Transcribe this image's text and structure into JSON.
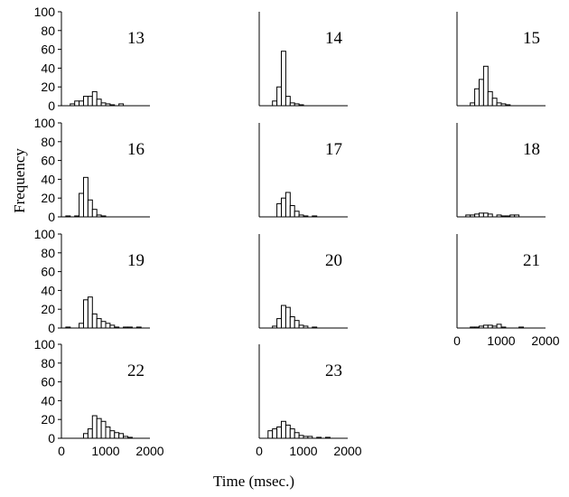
{
  "chart_data": {
    "type": "bar",
    "layout": "small-multiples histogram grid",
    "xlabel": "Time (msec.)",
    "ylabel": "Frequency",
    "xlim": [
      0,
      2000
    ],
    "ylim": [
      0,
      100
    ],
    "x_ticks": [
      "0",
      "1000",
      "2000"
    ],
    "y_ticks": [
      "0",
      "20",
      "40",
      "60",
      "80",
      "100"
    ],
    "bin_width_ms": 100,
    "grid": false,
    "panels": [
      {
        "label": "13",
        "bins": [
          {
            "x": 200,
            "y": 2
          },
          {
            "x": 300,
            "y": 5
          },
          {
            "x": 400,
            "y": 5
          },
          {
            "x": 500,
            "y": 10
          },
          {
            "x": 600,
            "y": 10
          },
          {
            "x": 700,
            "y": 15
          },
          {
            "x": 800,
            "y": 7
          },
          {
            "x": 900,
            "y": 3
          },
          {
            "x": 1000,
            "y": 2
          },
          {
            "x": 1100,
            "y": 1
          },
          {
            "x": 1300,
            "y": 2
          }
        ]
      },
      {
        "label": "14",
        "bins": [
          {
            "x": 300,
            "y": 5
          },
          {
            "x": 400,
            "y": 20
          },
          {
            "x": 500,
            "y": 58
          },
          {
            "x": 600,
            "y": 10
          },
          {
            "x": 700,
            "y": 3
          },
          {
            "x": 800,
            "y": 2
          },
          {
            "x": 900,
            "y": 1
          }
        ]
      },
      {
        "label": "15",
        "bins": [
          {
            "x": 300,
            "y": 3
          },
          {
            "x": 400,
            "y": 18
          },
          {
            "x": 500,
            "y": 28
          },
          {
            "x": 600,
            "y": 42
          },
          {
            "x": 700,
            "y": 15
          },
          {
            "x": 800,
            "y": 8
          },
          {
            "x": 900,
            "y": 3
          },
          {
            "x": 1000,
            "y": 2
          },
          {
            "x": 1100,
            "y": 1
          }
        ]
      },
      {
        "label": "16",
        "bins": [
          {
            "x": 100,
            "y": 1
          },
          {
            "x": 300,
            "y": 1
          },
          {
            "x": 400,
            "y": 25
          },
          {
            "x": 500,
            "y": 42
          },
          {
            "x": 600,
            "y": 18
          },
          {
            "x": 700,
            "y": 8
          },
          {
            "x": 800,
            "y": 2
          },
          {
            "x": 900,
            "y": 1
          }
        ]
      },
      {
        "label": "17",
        "bins": [
          {
            "x": 400,
            "y": 14
          },
          {
            "x": 500,
            "y": 20
          },
          {
            "x": 600,
            "y": 26
          },
          {
            "x": 700,
            "y": 12
          },
          {
            "x": 800,
            "y": 6
          },
          {
            "x": 900,
            "y": 2
          },
          {
            "x": 1000,
            "y": 1
          },
          {
            "x": 1200,
            "y": 1
          }
        ]
      },
      {
        "label": "18",
        "bins": [
          {
            "x": 200,
            "y": 2
          },
          {
            "x": 300,
            "y": 2
          },
          {
            "x": 400,
            "y": 3
          },
          {
            "x": 500,
            "y": 4
          },
          {
            "x": 600,
            "y": 4
          },
          {
            "x": 700,
            "y": 3
          },
          {
            "x": 900,
            "y": 2
          },
          {
            "x": 1000,
            "y": 1
          },
          {
            "x": 1100,
            "y": 1
          },
          {
            "x": 1200,
            "y": 2
          },
          {
            "x": 1300,
            "y": 2
          }
        ]
      },
      {
        "label": "19",
        "bins": [
          {
            "x": 100,
            "y": 1
          },
          {
            "x": 400,
            "y": 5
          },
          {
            "x": 500,
            "y": 30
          },
          {
            "x": 600,
            "y": 33
          },
          {
            "x": 700,
            "y": 15
          },
          {
            "x": 800,
            "y": 10
          },
          {
            "x": 900,
            "y": 7
          },
          {
            "x": 1000,
            "y": 5
          },
          {
            "x": 1100,
            "y": 3
          },
          {
            "x": 1200,
            "y": 1
          },
          {
            "x": 1400,
            "y": 1
          },
          {
            "x": 1500,
            "y": 1
          },
          {
            "x": 1700,
            "y": 1
          }
        ]
      },
      {
        "label": "20",
        "bins": [
          {
            "x": 300,
            "y": 2
          },
          {
            "x": 400,
            "y": 10
          },
          {
            "x": 500,
            "y": 24
          },
          {
            "x": 600,
            "y": 22
          },
          {
            "x": 700,
            "y": 12
          },
          {
            "x": 800,
            "y": 8
          },
          {
            "x": 900,
            "y": 3
          },
          {
            "x": 1000,
            "y": 2
          },
          {
            "x": 1200,
            "y": 1
          }
        ]
      },
      {
        "label": "21",
        "bins": [
          {
            "x": 300,
            "y": 1
          },
          {
            "x": 400,
            "y": 1
          },
          {
            "x": 500,
            "y": 2
          },
          {
            "x": 600,
            "y": 3
          },
          {
            "x": 700,
            "y": 3
          },
          {
            "x": 800,
            "y": 2
          },
          {
            "x": 900,
            "y": 4
          },
          {
            "x": 1000,
            "y": 1
          },
          {
            "x": 1400,
            "y": 1
          }
        ]
      },
      {
        "label": "22",
        "bins": [
          {
            "x": 500,
            "y": 5
          },
          {
            "x": 600,
            "y": 10
          },
          {
            "x": 700,
            "y": 24
          },
          {
            "x": 800,
            "y": 21
          },
          {
            "x": 900,
            "y": 18
          },
          {
            "x": 1000,
            "y": 12
          },
          {
            "x": 1100,
            "y": 8
          },
          {
            "x": 1200,
            "y": 6
          },
          {
            "x": 1300,
            "y": 5
          },
          {
            "x": 1400,
            "y": 2
          },
          {
            "x": 1500,
            "y": 1
          }
        ]
      },
      {
        "label": "23",
        "bins": [
          {
            "x": 200,
            "y": 8
          },
          {
            "x": 300,
            "y": 10
          },
          {
            "x": 400,
            "y": 12
          },
          {
            "x": 500,
            "y": 18
          },
          {
            "x": 600,
            "y": 14
          },
          {
            "x": 700,
            "y": 10
          },
          {
            "x": 800,
            "y": 6
          },
          {
            "x": 900,
            "y": 3
          },
          {
            "x": 1000,
            "y": 2
          },
          {
            "x": 1100,
            "y": 2
          },
          {
            "x": 1300,
            "y": 1
          },
          {
            "x": 1500,
            "y": 1
          }
        ]
      }
    ],
    "x_tick_panels": [
      "21",
      "22",
      "23"
    ],
    "colors": {
      "bar_fill": "#ffffff",
      "bar_stroke": "#000000",
      "axis": "#000000"
    }
  }
}
